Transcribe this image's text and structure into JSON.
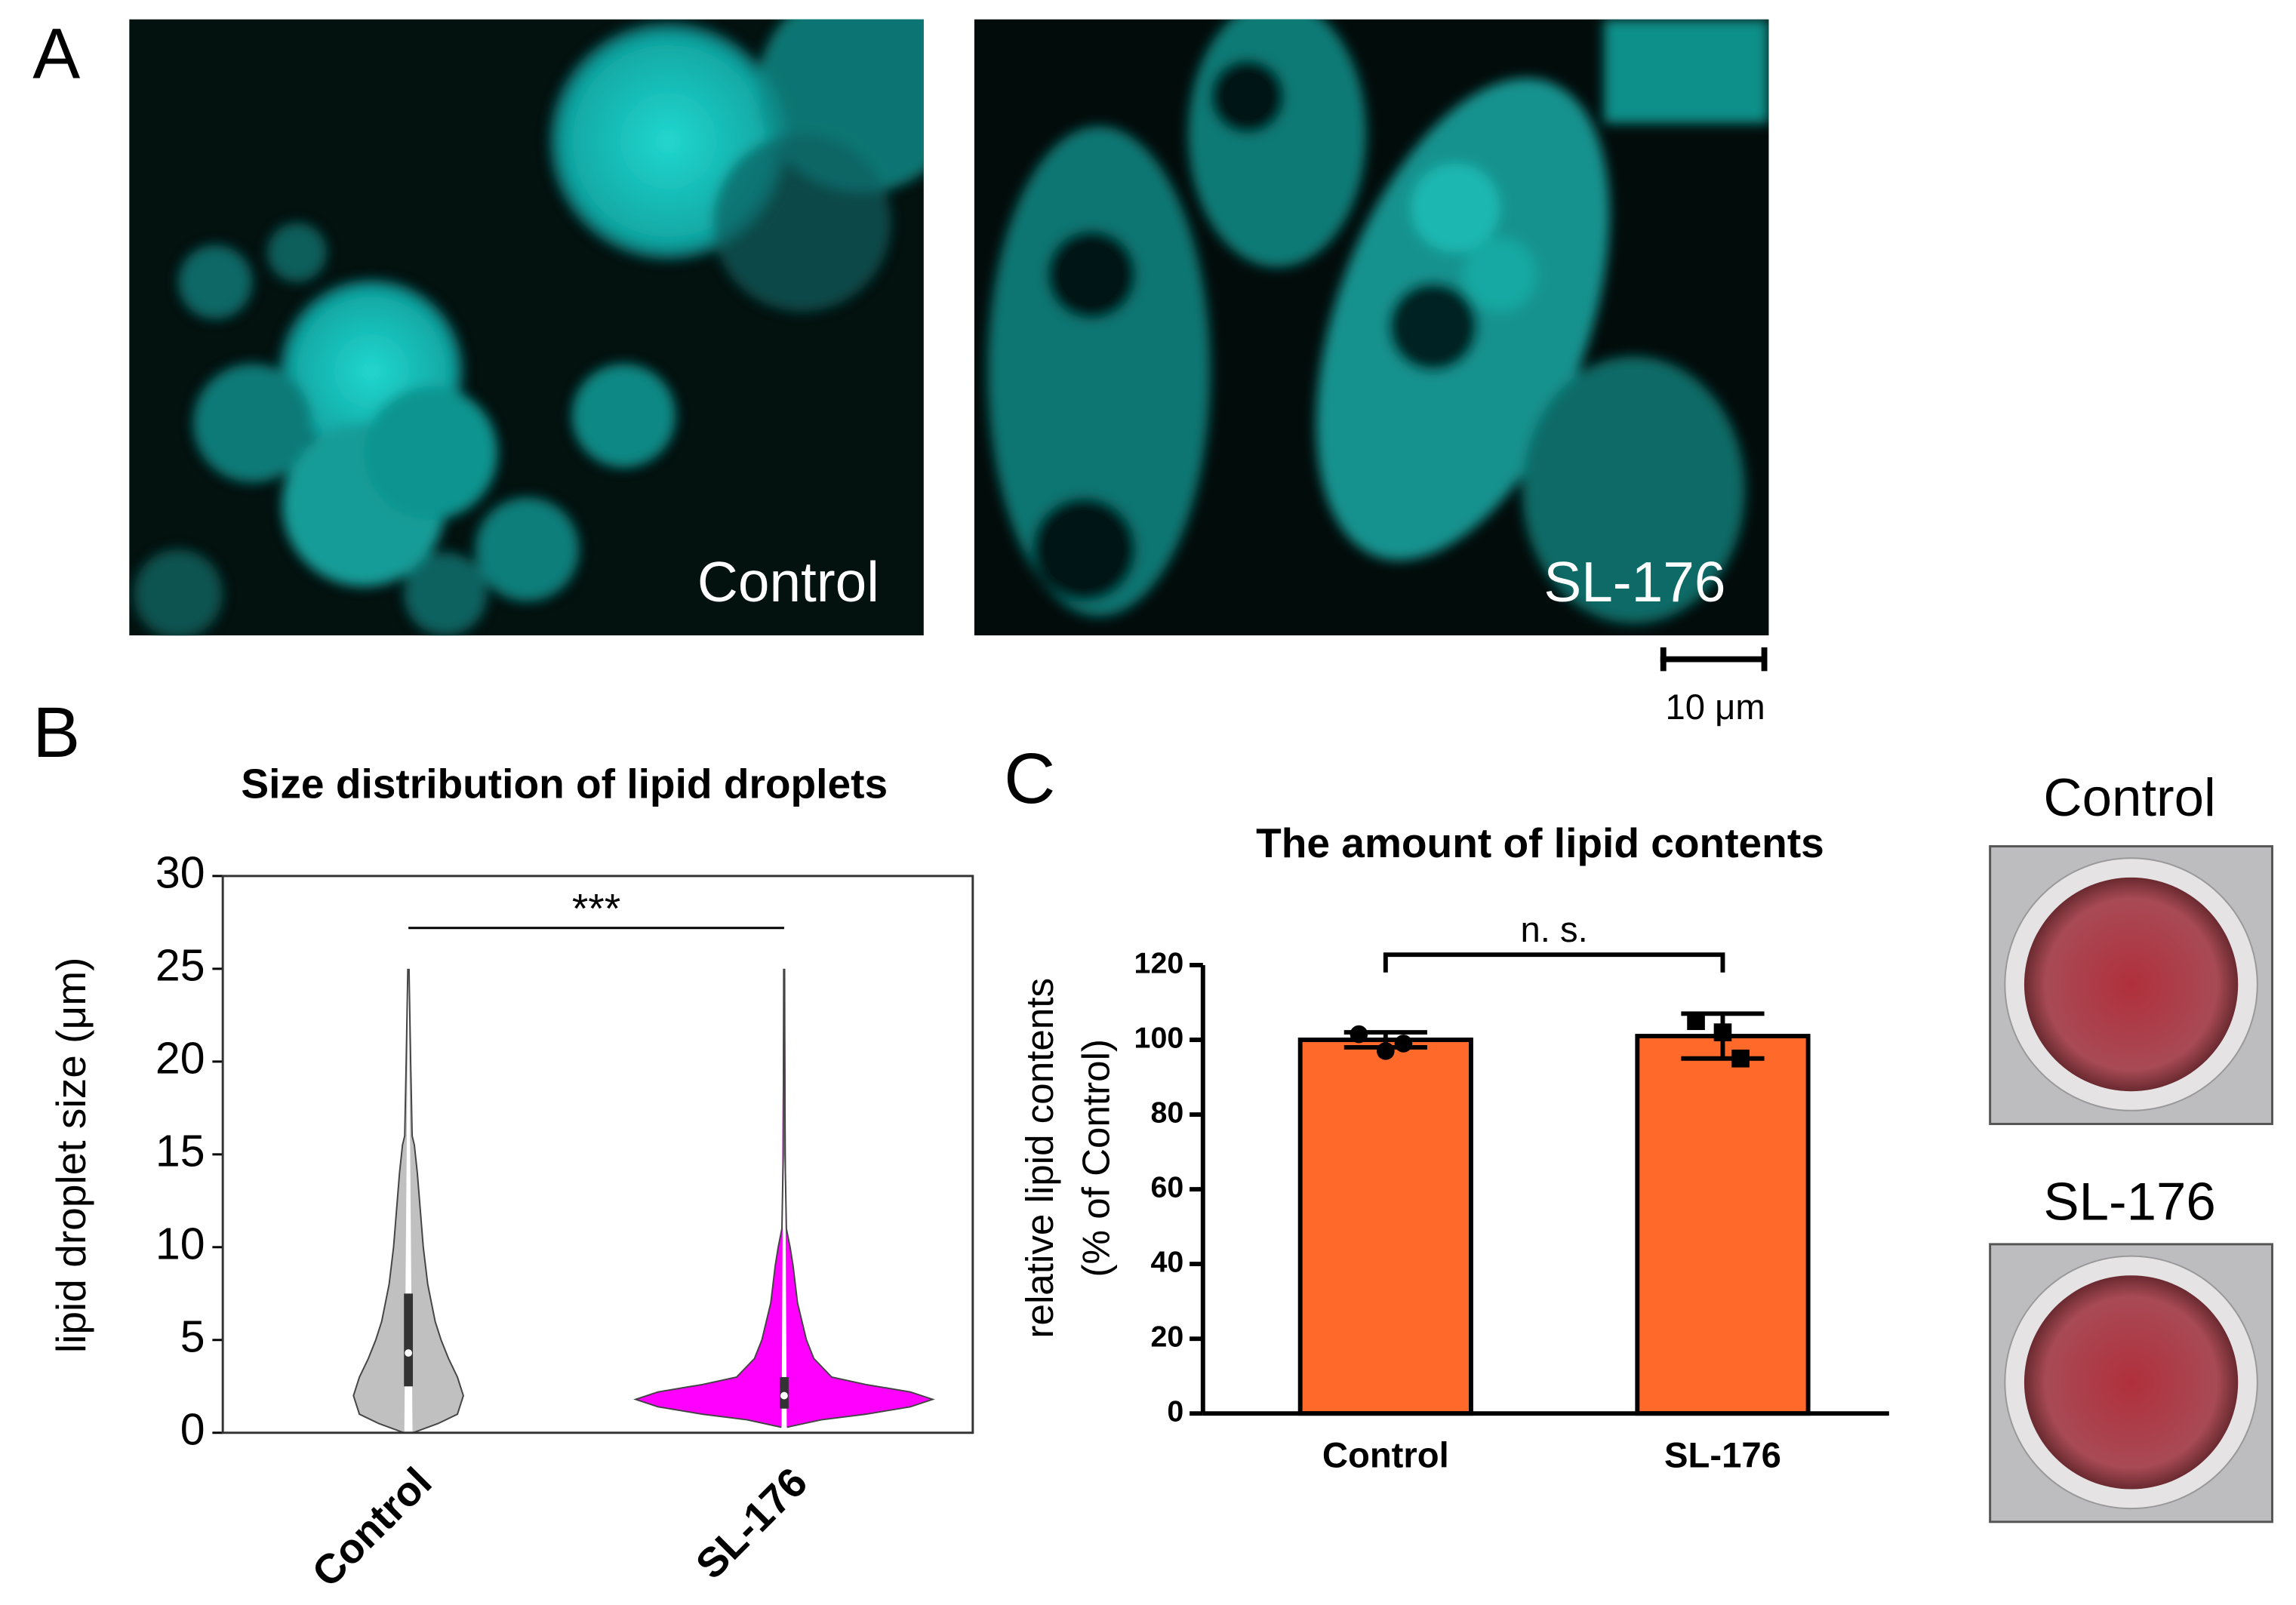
{
  "panel_labels": [
    "A",
    "B",
    "C"
  ],
  "micrographs": [
    "Control",
    "SL-176"
  ],
  "scale_bar": "10 μm",
  "wells": [
    "Control",
    "SL-176"
  ],
  "chart_data": [
    {
      "type": "violin",
      "title": "Size distribution of lipid droplets",
      "y_label": "lipid droplet size (μm)",
      "categories": [
        "Control",
        "SL-176"
      ],
      "violins": [
        {
          "color": "#c0c0c0",
          "density_y": [
            0,
            0.5,
            1,
            2,
            3,
            4,
            5,
            6,
            8,
            10,
            12,
            14,
            15.5,
            16,
            20,
            25
          ],
          "density": [
            0.03,
            0.2,
            0.33,
            0.37,
            0.33,
            0.27,
            0.22,
            0.18,
            0.13,
            0.1,
            0.08,
            0.06,
            0.04,
            0.025,
            0.015,
            0.004
          ],
          "median": 4.3,
          "q1": 2.5,
          "q3": 7.5
        },
        {
          "color": "#ff00ff",
          "density_y": [
            0.3,
            0.7,
            1,
            1.4,
            1.8,
            2.2,
            2.6,
            3,
            4,
            5,
            7,
            9,
            10,
            11,
            15,
            25
          ],
          "density": [
            0.02,
            0.25,
            0.55,
            0.85,
            1.0,
            0.85,
            0.55,
            0.32,
            0.2,
            0.15,
            0.09,
            0.06,
            0.04,
            0.015,
            0.006,
            0.003
          ],
          "median": 2.0,
          "q1": 1.3,
          "q3": 3.0
        }
      ],
      "ylim": [
        0,
        30
      ],
      "yticks": [
        0,
        5,
        10,
        15,
        20,
        25,
        30
      ],
      "annotation": "***"
    },
    {
      "type": "bar",
      "title": "The amount of lipid contents",
      "y_label": [
        "relative lipid contents",
        "(% of Control)"
      ],
      "categories": [
        "Control",
        "SL-176"
      ],
      "values": [
        100,
        101
      ],
      "errors": [
        2,
        6
      ],
      "points": [
        [
          101.5,
          97,
          99
        ],
        [
          105,
          102,
          95
        ]
      ],
      "color": "#ff6a2a",
      "ylim": [
        0,
        120
      ],
      "yticks": [
        0,
        20,
        40,
        60,
        80,
        100,
        120
      ],
      "annotation": "n. s."
    }
  ]
}
